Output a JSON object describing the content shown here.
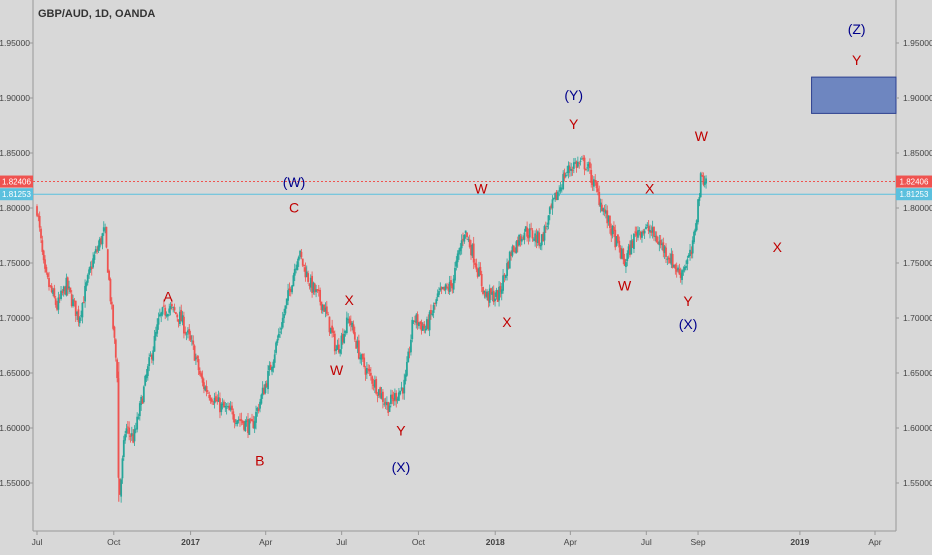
{
  "header": {
    "title": "GBP/AUD, 1D, OANDA"
  },
  "colors": {
    "background": "#d8d8d8",
    "up": "#26a69a",
    "down": "#ef5350",
    "wave_red": "#c00000",
    "wave_blue": "#00008b",
    "current_price": "#ef5350",
    "level_line": "#5bc0de",
    "target_box": "#6e86c0"
  },
  "chart_data": {
    "type": "candlestick",
    "title": "GBP/AUD, 1D, OANDA",
    "ylim": [
      1.52,
      1.985
    ],
    "y_ticks": [
      "1.95000",
      "1.90000",
      "1.85000",
      "1.80000",
      "1.75000",
      "1.70000",
      "1.65000",
      "1.60000",
      "1.55000"
    ],
    "x_ticks": [
      "Jul",
      "Oct",
      "2017",
      "Apr",
      "Jul",
      "Oct",
      "2018",
      "Apr",
      "Jul",
      "Sep",
      "2019",
      "Apr"
    ],
    "price_labels": [
      {
        "value": 1.82406,
        "text": "1.82406",
        "color": "#ef5350"
      },
      {
        "value": 1.81253,
        "text": "1.81253",
        "color": "#5bc0de"
      }
    ],
    "price_series": [
      {
        "d": "2016-07-01",
        "v": 1.8
      },
      {
        "d": "2016-07-10",
        "v": 1.74
      },
      {
        "d": "2016-07-25",
        "v": 1.71
      },
      {
        "d": "2016-08-05",
        "v": 1.73
      },
      {
        "d": "2016-08-20",
        "v": 1.7
      },
      {
        "d": "2016-09-05",
        "v": 1.75
      },
      {
        "d": "2016-09-20",
        "v": 1.78
      },
      {
        "d": "2016-10-05",
        "v": 1.65
      },
      {
        "d": "2016-10-07",
        "v": 1.53
      },
      {
        "d": "2016-10-15",
        "v": 1.6
      },
      {
        "d": "2016-10-25",
        "v": 1.59
      },
      {
        "d": "2016-11-10",
        "v": 1.65
      },
      {
        "d": "2016-11-25",
        "v": 1.7
      },
      {
        "d": "2016-12-05",
        "v": 1.71
      },
      {
        "d": "2016-12-20",
        "v": 1.7
      },
      {
        "d": "2017-01-05",
        "v": 1.67
      },
      {
        "d": "2017-01-15",
        "v": 1.64
      },
      {
        "d": "2017-02-05",
        "v": 1.62
      },
      {
        "d": "2017-02-25",
        "v": 1.61
      },
      {
        "d": "2017-03-15",
        "v": 1.6
      },
      {
        "d": "2017-04-05",
        "v": 1.65
      },
      {
        "d": "2017-04-25",
        "v": 1.71
      },
      {
        "d": "2017-05-10",
        "v": 1.76
      },
      {
        "d": "2017-05-25",
        "v": 1.73
      },
      {
        "d": "2017-06-10",
        "v": 1.71
      },
      {
        "d": "2017-06-25",
        "v": 1.67
      },
      {
        "d": "2017-07-10",
        "v": 1.7
      },
      {
        "d": "2017-07-25",
        "v": 1.66
      },
      {
        "d": "2017-08-10",
        "v": 1.64
      },
      {
        "d": "2017-08-25",
        "v": 1.62
      },
      {
        "d": "2017-09-15",
        "v": 1.64
      },
      {
        "d": "2017-09-25",
        "v": 1.7
      },
      {
        "d": "2017-10-10",
        "v": 1.69
      },
      {
        "d": "2017-10-25",
        "v": 1.72
      },
      {
        "d": "2017-11-10",
        "v": 1.73
      },
      {
        "d": "2017-11-25",
        "v": 1.78
      },
      {
        "d": "2017-12-05",
        "v": 1.76
      },
      {
        "d": "2017-12-20",
        "v": 1.72
      },
      {
        "d": "2018-01-05",
        "v": 1.72
      },
      {
        "d": "2018-01-20",
        "v": 1.76
      },
      {
        "d": "2018-02-05",
        "v": 1.78
      },
      {
        "d": "2018-02-25",
        "v": 1.77
      },
      {
        "d": "2018-03-10",
        "v": 1.8
      },
      {
        "d": "2018-03-25",
        "v": 1.83
      },
      {
        "d": "2018-04-05",
        "v": 1.84
      },
      {
        "d": "2018-04-20",
        "v": 1.84
      },
      {
        "d": "2018-05-05",
        "v": 1.81
      },
      {
        "d": "2018-05-20",
        "v": 1.78
      },
      {
        "d": "2018-06-05",
        "v": 1.75
      },
      {
        "d": "2018-06-20",
        "v": 1.78
      },
      {
        "d": "2018-07-05",
        "v": 1.78
      },
      {
        "d": "2018-07-25",
        "v": 1.76
      },
      {
        "d": "2018-08-10",
        "v": 1.74
      },
      {
        "d": "2018-08-25",
        "v": 1.76
      },
      {
        "d": "2018-09-05",
        "v": 1.83
      },
      {
        "d": "2018-09-12",
        "v": 1.824
      }
    ],
    "target_zone": {
      "x_start": "2019-01-15",
      "x_end": "2019-05-01",
      "y_low": 1.886,
      "y_high": 1.919
    },
    "annotations": [
      {
        "text": "A",
        "d": "2016-12-05",
        "v": 1.715,
        "color": "red"
      },
      {
        "text": "B",
        "d": "2017-03-25",
        "v": 1.566,
        "color": "red"
      },
      {
        "text": "C",
        "d": "2017-05-05",
        "v": 1.796,
        "color": "red"
      },
      {
        "text": "(W)",
        "d": "2017-05-05",
        "v": 1.819,
        "color": "blue"
      },
      {
        "text": "X",
        "d": "2017-07-10",
        "v": 1.712,
        "color": "red"
      },
      {
        "text": "W",
        "d": "2017-06-25",
        "v": 1.648,
        "color": "red"
      },
      {
        "text": "Y",
        "d": "2017-09-10",
        "v": 1.593,
        "color": "red"
      },
      {
        "text": "(X)",
        "d": "2017-09-10",
        "v": 1.56,
        "color": "blue"
      },
      {
        "text": "W",
        "d": "2017-12-15",
        "v": 1.813,
        "color": "red"
      },
      {
        "text": "X",
        "d": "2018-01-15",
        "v": 1.692,
        "color": "red"
      },
      {
        "text": "(Y)",
        "d": "2018-04-05",
        "v": 1.898,
        "color": "blue"
      },
      {
        "text": "Y",
        "d": "2018-04-05",
        "v": 1.872,
        "color": "red"
      },
      {
        "text": "X",
        "d": "2018-07-05",
        "v": 1.813,
        "color": "red"
      },
      {
        "text": "W",
        "d": "2018-06-05",
        "v": 1.725,
        "color": "red"
      },
      {
        "text": "Y",
        "d": "2018-08-20",
        "v": 1.711,
        "color": "red"
      },
      {
        "text": "(X)",
        "d": "2018-08-20",
        "v": 1.69,
        "color": "blue"
      },
      {
        "text": "W",
        "d": "2018-09-05",
        "v": 1.861,
        "color": "red"
      },
      {
        "text": "X",
        "d": "2018-12-05",
        "v": 1.76,
        "color": "red"
      },
      {
        "text": "(Z)",
        "d": "2019-03-10",
        "v": 1.958,
        "color": "blue"
      },
      {
        "text": "Y",
        "d": "2019-03-10",
        "v": 1.93,
        "color": "red"
      }
    ]
  }
}
